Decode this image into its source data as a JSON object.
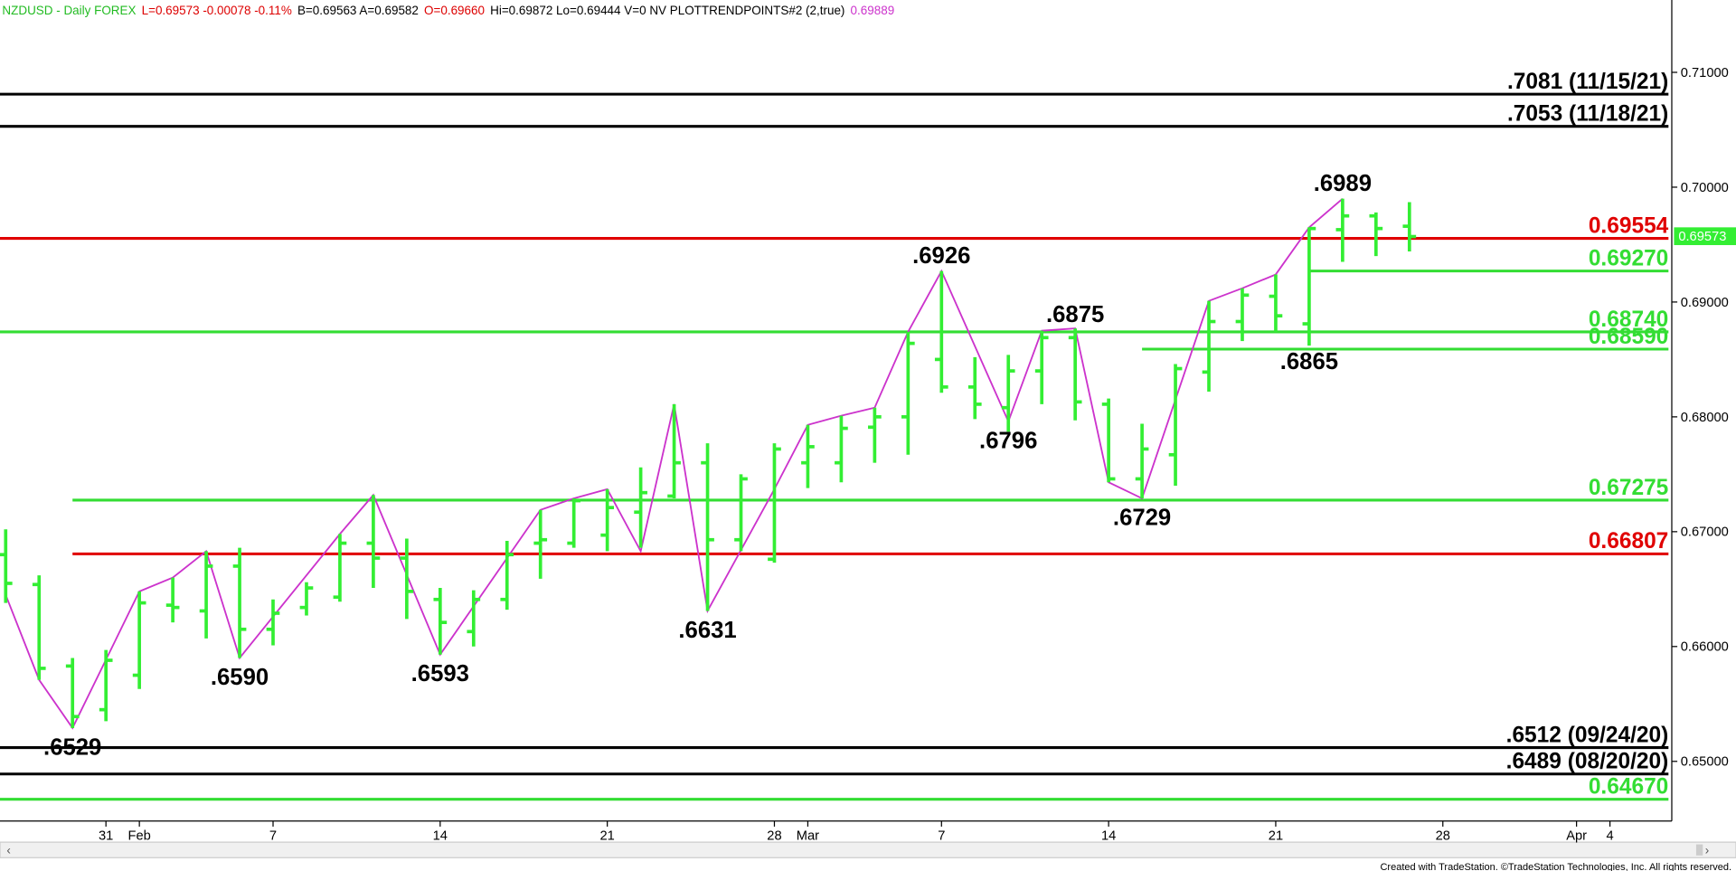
{
  "chart_data": {
    "type": "ohlc",
    "header": [
      {
        "text": "NZDUSD - Daily FOREX",
        "color": "#22bb22"
      },
      {
        "text": "L=0.69573 -0.00078 -0.11%",
        "color": "#dd0000"
      },
      {
        "text": "B=0.69563 A=0.69582",
        "color": "#000000"
      },
      {
        "text": "O=0.69660",
        "color": "#dd0000"
      },
      {
        "text": "Hi=0.69872 Lo=0.69444 V=0 NV PLOTTRENDPOINTS#2 (2,true)",
        "color": "#000000"
      },
      {
        "text": "0.69889",
        "color": "#cc33cc"
      }
    ],
    "color": "#33ee33",
    "x": [
      0,
      1,
      2,
      3,
      4,
      5,
      6,
      7,
      8,
      9,
      10,
      11,
      12,
      13,
      14,
      15,
      16,
      17,
      18,
      19,
      20,
      21,
      22,
      23,
      24,
      25,
      26,
      27,
      28,
      29,
      30,
      31,
      32,
      33,
      34,
      35,
      36,
      37,
      38,
      39,
      40,
      41,
      42
    ],
    "open": [
      0.668,
      0.6654,
      0.6583,
      0.6545,
      0.6575,
      0.6636,
      0.6631,
      0.667,
      0.6615,
      0.6634,
      0.6643,
      0.669,
      0.6677,
      0.6641,
      0.6613,
      0.6641,
      0.669,
      0.669,
      0.6697,
      0.6717,
      0.6731,
      0.676,
      0.6693,
      0.6676,
      0.676,
      0.676,
      0.6791,
      0.68,
      0.685,
      0.6826,
      0.6808,
      0.684,
      0.6869,
      0.6811,
      0.6746,
      0.6767,
      0.6839,
      0.6883,
      0.6905,
      0.6881,
      0.6963,
      0.6975,
      0.6966
    ],
    "high": [
      0.6702,
      0.6662,
      0.659,
      0.6597,
      0.6648,
      0.666,
      0.6683,
      0.6686,
      0.6641,
      0.6656,
      0.6698,
      0.6732,
      0.6694,
      0.6651,
      0.6649,
      0.6692,
      0.6719,
      0.6729,
      0.6737,
      0.6756,
      0.6811,
      0.6777,
      0.675,
      0.6777,
      0.6793,
      0.6801,
      0.6808,
      0.6874,
      0.6927,
      0.6852,
      0.6854,
      0.6875,
      0.6877,
      0.6816,
      0.6794,
      0.6846,
      0.6901,
      0.6912,
      0.6924,
      0.6965,
      0.699,
      0.6978,
      0.6987
    ],
    "low": [
      0.6638,
      0.6571,
      0.6529,
      0.6535,
      0.6563,
      0.6621,
      0.6607,
      0.659,
      0.6601,
      0.6627,
      0.6639,
      0.6651,
      0.6624,
      0.6593,
      0.66,
      0.6632,
      0.6659,
      0.6686,
      0.6683,
      0.6686,
      0.6729,
      0.6631,
      0.6683,
      0.6673,
      0.6738,
      0.6743,
      0.676,
      0.6767,
      0.6821,
      0.6798,
      0.6787,
      0.6811,
      0.6797,
      0.6743,
      0.6729,
      0.674,
      0.6822,
      0.6866,
      0.6874,
      0.6862,
      0.6935,
      0.694,
      0.6944
    ],
    "close": [
      0.6655,
      0.6581,
      0.6539,
      0.6588,
      0.6638,
      0.6634,
      0.667,
      0.6615,
      0.6629,
      0.6651,
      0.669,
      0.6677,
      0.6648,
      0.6621,
      0.6641,
      0.668,
      0.6693,
      0.6727,
      0.6721,
      0.6734,
      0.676,
      0.6693,
      0.6746,
      0.6772,
      0.6774,
      0.679,
      0.68,
      0.6864,
      0.6826,
      0.6811,
      0.684,
      0.6869,
      0.6813,
      0.6746,
      0.6772,
      0.6842,
      0.6883,
      0.6906,
      0.6888,
      0.6964,
      0.6975,
      0.6964,
      0.6957
    ],
    "swing": {
      "color": "#cc33cc",
      "x": [
        0,
        1,
        2,
        4,
        5,
        6,
        7,
        10,
        11,
        13,
        16,
        17,
        18,
        19,
        20,
        21,
        23,
        24,
        25,
        26,
        27,
        28,
        30,
        31,
        32,
        33,
        34,
        36,
        37,
        38,
        39,
        40
      ],
      "values": [
        0.6645,
        0.6571,
        0.6529,
        0.6648,
        0.666,
        0.6683,
        0.659,
        0.6698,
        0.6732,
        0.6593,
        0.6719,
        0.6729,
        0.6737,
        0.6683,
        0.6811,
        0.6631,
        0.6737,
        0.6793,
        0.6801,
        0.6808,
        0.6874,
        0.6927,
        0.6796,
        0.6875,
        0.6877,
        0.6743,
        0.6729,
        0.6901,
        0.6912,
        0.6924,
        0.6965,
        0.699
      ]
    },
    "annotations": [
      {
        "label": ".6529",
        "x": 2,
        "value": 0.6529
      },
      {
        "label": ".6590",
        "x": 7,
        "value": 0.659
      },
      {
        "label": ".6593",
        "x": 13,
        "value": 0.6593
      },
      {
        "label": ".6631",
        "x": 21,
        "value": 0.6631
      },
      {
        "label": ".6926",
        "x": 28,
        "value": 0.6926
      },
      {
        "label": ".6796",
        "x": 30,
        "value": 0.6796
      },
      {
        "label": ".6875",
        "x": 32,
        "value": 0.6875
      },
      {
        "label": ".6729",
        "x": 34,
        "value": 0.6729
      },
      {
        "label": ".6865",
        "x": 39,
        "value": 0.6865
      },
      {
        "label": ".6989",
        "x": 40,
        "value": 0.6989
      }
    ],
    "levels": [
      {
        "label": ".7081 (11/15/21)",
        "value": 0.7081,
        "color": "#000000",
        "from": null
      },
      {
        "label": ".7053 (11/18/21)",
        "value": 0.7053,
        "color": "#000000",
        "from": null
      },
      {
        "label": "0.69554",
        "value": 0.69554,
        "color": "#e00000",
        "from": null
      },
      {
        "label": "0.69270",
        "value": 0.6927,
        "color": "#33dd33",
        "from": 39
      },
      {
        "label": "0.68740",
        "value": 0.6874,
        "color": "#33dd33",
        "from": null
      },
      {
        "label": "0.68590",
        "value": 0.6859,
        "color": "#33dd33",
        "from": 34
      },
      {
        "label": "0.67275",
        "value": 0.67275,
        "color": "#33dd33",
        "from": 2
      },
      {
        "label": "0.66807",
        "value": 0.66807,
        "color": "#e00000",
        "from": 2
      },
      {
        "label": ".6512 (09/24/20)",
        "value": 0.6512,
        "color": "#000000",
        "from": null
      },
      {
        "label": ".6489 (08/20/20)",
        "value": 0.6489,
        "color": "#000000",
        "from": null
      },
      {
        "label": "0.64670",
        "value": 0.6467,
        "color": "#33dd33",
        "from": null
      }
    ],
    "last_price": {
      "label": "0.69573",
      "value": 0.69573,
      "color": "#33ee33"
    },
    "xlim": [
      -0.17,
      49.85
    ],
    "xticks": [
      {
        "value": 3,
        "label": "31"
      },
      {
        "value": 4,
        "label": "Feb"
      },
      {
        "value": 8,
        "label": "7"
      },
      {
        "value": 13,
        "label": "14"
      },
      {
        "value": 18,
        "label": "21"
      },
      {
        "value": 23,
        "label": "28"
      },
      {
        "value": 24,
        "label": "Mar"
      },
      {
        "value": 28,
        "label": "7"
      },
      {
        "value": 33,
        "label": "14"
      },
      {
        "value": 38,
        "label": "21"
      },
      {
        "value": 43,
        "label": "28"
      },
      {
        "value": 47,
        "label": "Apr"
      },
      {
        "value": 48,
        "label": "4"
      }
    ],
    "ylim": [
      0.6448,
      0.7163
    ],
    "yticks": [
      {
        "value": 0.65,
        "label": "0.65000"
      },
      {
        "value": 0.66,
        "label": "0.66000"
      },
      {
        "value": 0.67,
        "label": "0.67000"
      },
      {
        "value": 0.68,
        "label": "0.68000"
      },
      {
        "value": 0.69,
        "label": "0.69000"
      },
      {
        "value": 0.7,
        "label": "0.70000"
      },
      {
        "value": 0.71,
        "label": "0.71000"
      }
    ],
    "footer": "Created with TradeStation. ©TradeStation Technologies, Inc. All rights reserved."
  }
}
